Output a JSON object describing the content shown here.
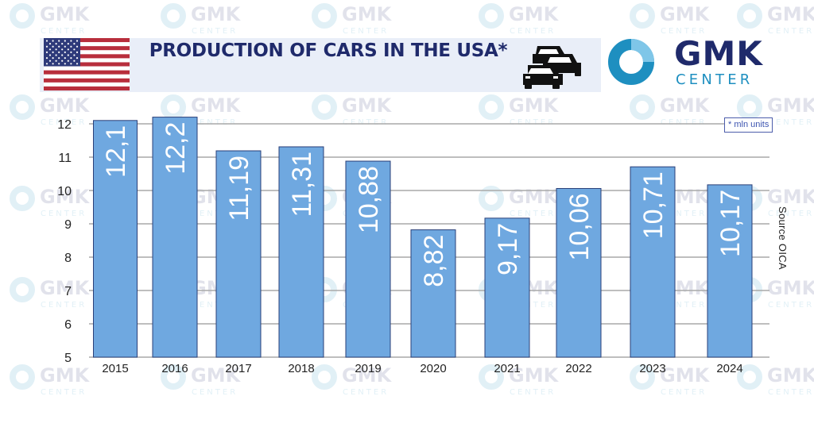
{
  "header": {
    "title": "PRODUCTION OF CARS IN THE USA*",
    "flag_icon": "us-flag-icon",
    "cars_icon": "cars-icon",
    "brand_name": "GMK",
    "brand_sub": "CENTER",
    "brand_color": "#1f2a6b",
    "brand_accent": "#1e8fc0"
  },
  "unit_note": "* mln units",
  "source_note": "Source OICA",
  "watermark_text": "GMK",
  "watermark_sub": "CENTER",
  "chart_data": {
    "type": "bar",
    "categories": [
      "2015",
      "2016",
      "2017",
      "2018",
      "2019",
      "2020",
      "2021",
      "2022",
      "2023",
      "2024"
    ],
    "values": [
      12.1,
      12.2,
      11.19,
      11.31,
      10.88,
      8.82,
      9.17,
      10.06,
      10.71,
      10.17
    ],
    "data_labels": [
      "12,1",
      "12,2",
      "11,19",
      "11,31",
      "10,88",
      "8,82",
      "9,17",
      "10,06",
      "10,71",
      "10,17"
    ],
    "ylim": [
      5,
      12
    ],
    "yticks": [
      "12",
      "11",
      "10",
      "9",
      "8",
      "7",
      "6",
      "5"
    ],
    "grid": true,
    "bar_color": "#6fa8e0",
    "bar_edge_color": "#2a3f78",
    "label_color": "#ffffff"
  }
}
